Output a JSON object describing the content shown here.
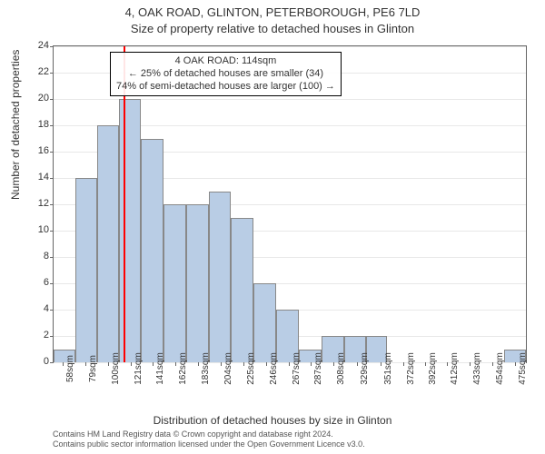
{
  "title": "4, OAK ROAD, GLINTON, PETERBOROUGH, PE6 7LD",
  "subtitle": "Size of property relative to detached houses in Glinton",
  "ylabel": "Number of detached properties",
  "xlabel": "Distribution of detached houses by size in Glinton",
  "chart": {
    "type": "histogram",
    "ylim": [
      0,
      24
    ],
    "ytick_step": 2,
    "yticks": [
      0,
      2,
      4,
      6,
      8,
      10,
      12,
      14,
      16,
      18,
      20,
      22,
      24
    ],
    "x_range_sqm": [
      50,
      485
    ],
    "xtick_labels_sqm": [
      58,
      79,
      100,
      121,
      141,
      162,
      183,
      204,
      225,
      246,
      267,
      287,
      308,
      329,
      351,
      372,
      392,
      412,
      433,
      454,
      475
    ],
    "xtick_suffix": "sqm",
    "bar_color": "#b9cde5",
    "bar_border": "#888",
    "grid_color": "#e8e8e8",
    "background": "#ffffff",
    "marker_color": "#ff0000",
    "marker_sqm": 114,
    "bars": [
      {
        "start_sqm": 50,
        "end_sqm": 70,
        "count": 1
      },
      {
        "start_sqm": 70,
        "end_sqm": 90,
        "count": 14
      },
      {
        "start_sqm": 90,
        "end_sqm": 110,
        "count": 18
      },
      {
        "start_sqm": 110,
        "end_sqm": 130,
        "count": 20
      },
      {
        "start_sqm": 130,
        "end_sqm": 151,
        "count": 17
      },
      {
        "start_sqm": 151,
        "end_sqm": 172,
        "count": 12
      },
      {
        "start_sqm": 172,
        "end_sqm": 193,
        "count": 12
      },
      {
        "start_sqm": 193,
        "end_sqm": 213,
        "count": 13
      },
      {
        "start_sqm": 213,
        "end_sqm": 234,
        "count": 11
      },
      {
        "start_sqm": 234,
        "end_sqm": 255,
        "count": 6
      },
      {
        "start_sqm": 255,
        "end_sqm": 276,
        "count": 4
      },
      {
        "start_sqm": 276,
        "end_sqm": 297,
        "count": 1
      },
      {
        "start_sqm": 297,
        "end_sqm": 318,
        "count": 2
      },
      {
        "start_sqm": 318,
        "end_sqm": 338,
        "count": 2
      },
      {
        "start_sqm": 338,
        "end_sqm": 357,
        "count": 2
      },
      {
        "start_sqm": 465,
        "end_sqm": 485,
        "count": 1
      }
    ]
  },
  "annotation": {
    "line1": "4 OAK ROAD: 114sqm",
    "line2": "← 25% of detached houses are smaller (34)",
    "line3": "74% of semi-detached houses are larger (100) →"
  },
  "footer": {
    "line1": "Contains HM Land Registry data © Crown copyright and database right 2024.",
    "line2": "Contains public sector information licensed under the Open Government Licence v3.0."
  }
}
